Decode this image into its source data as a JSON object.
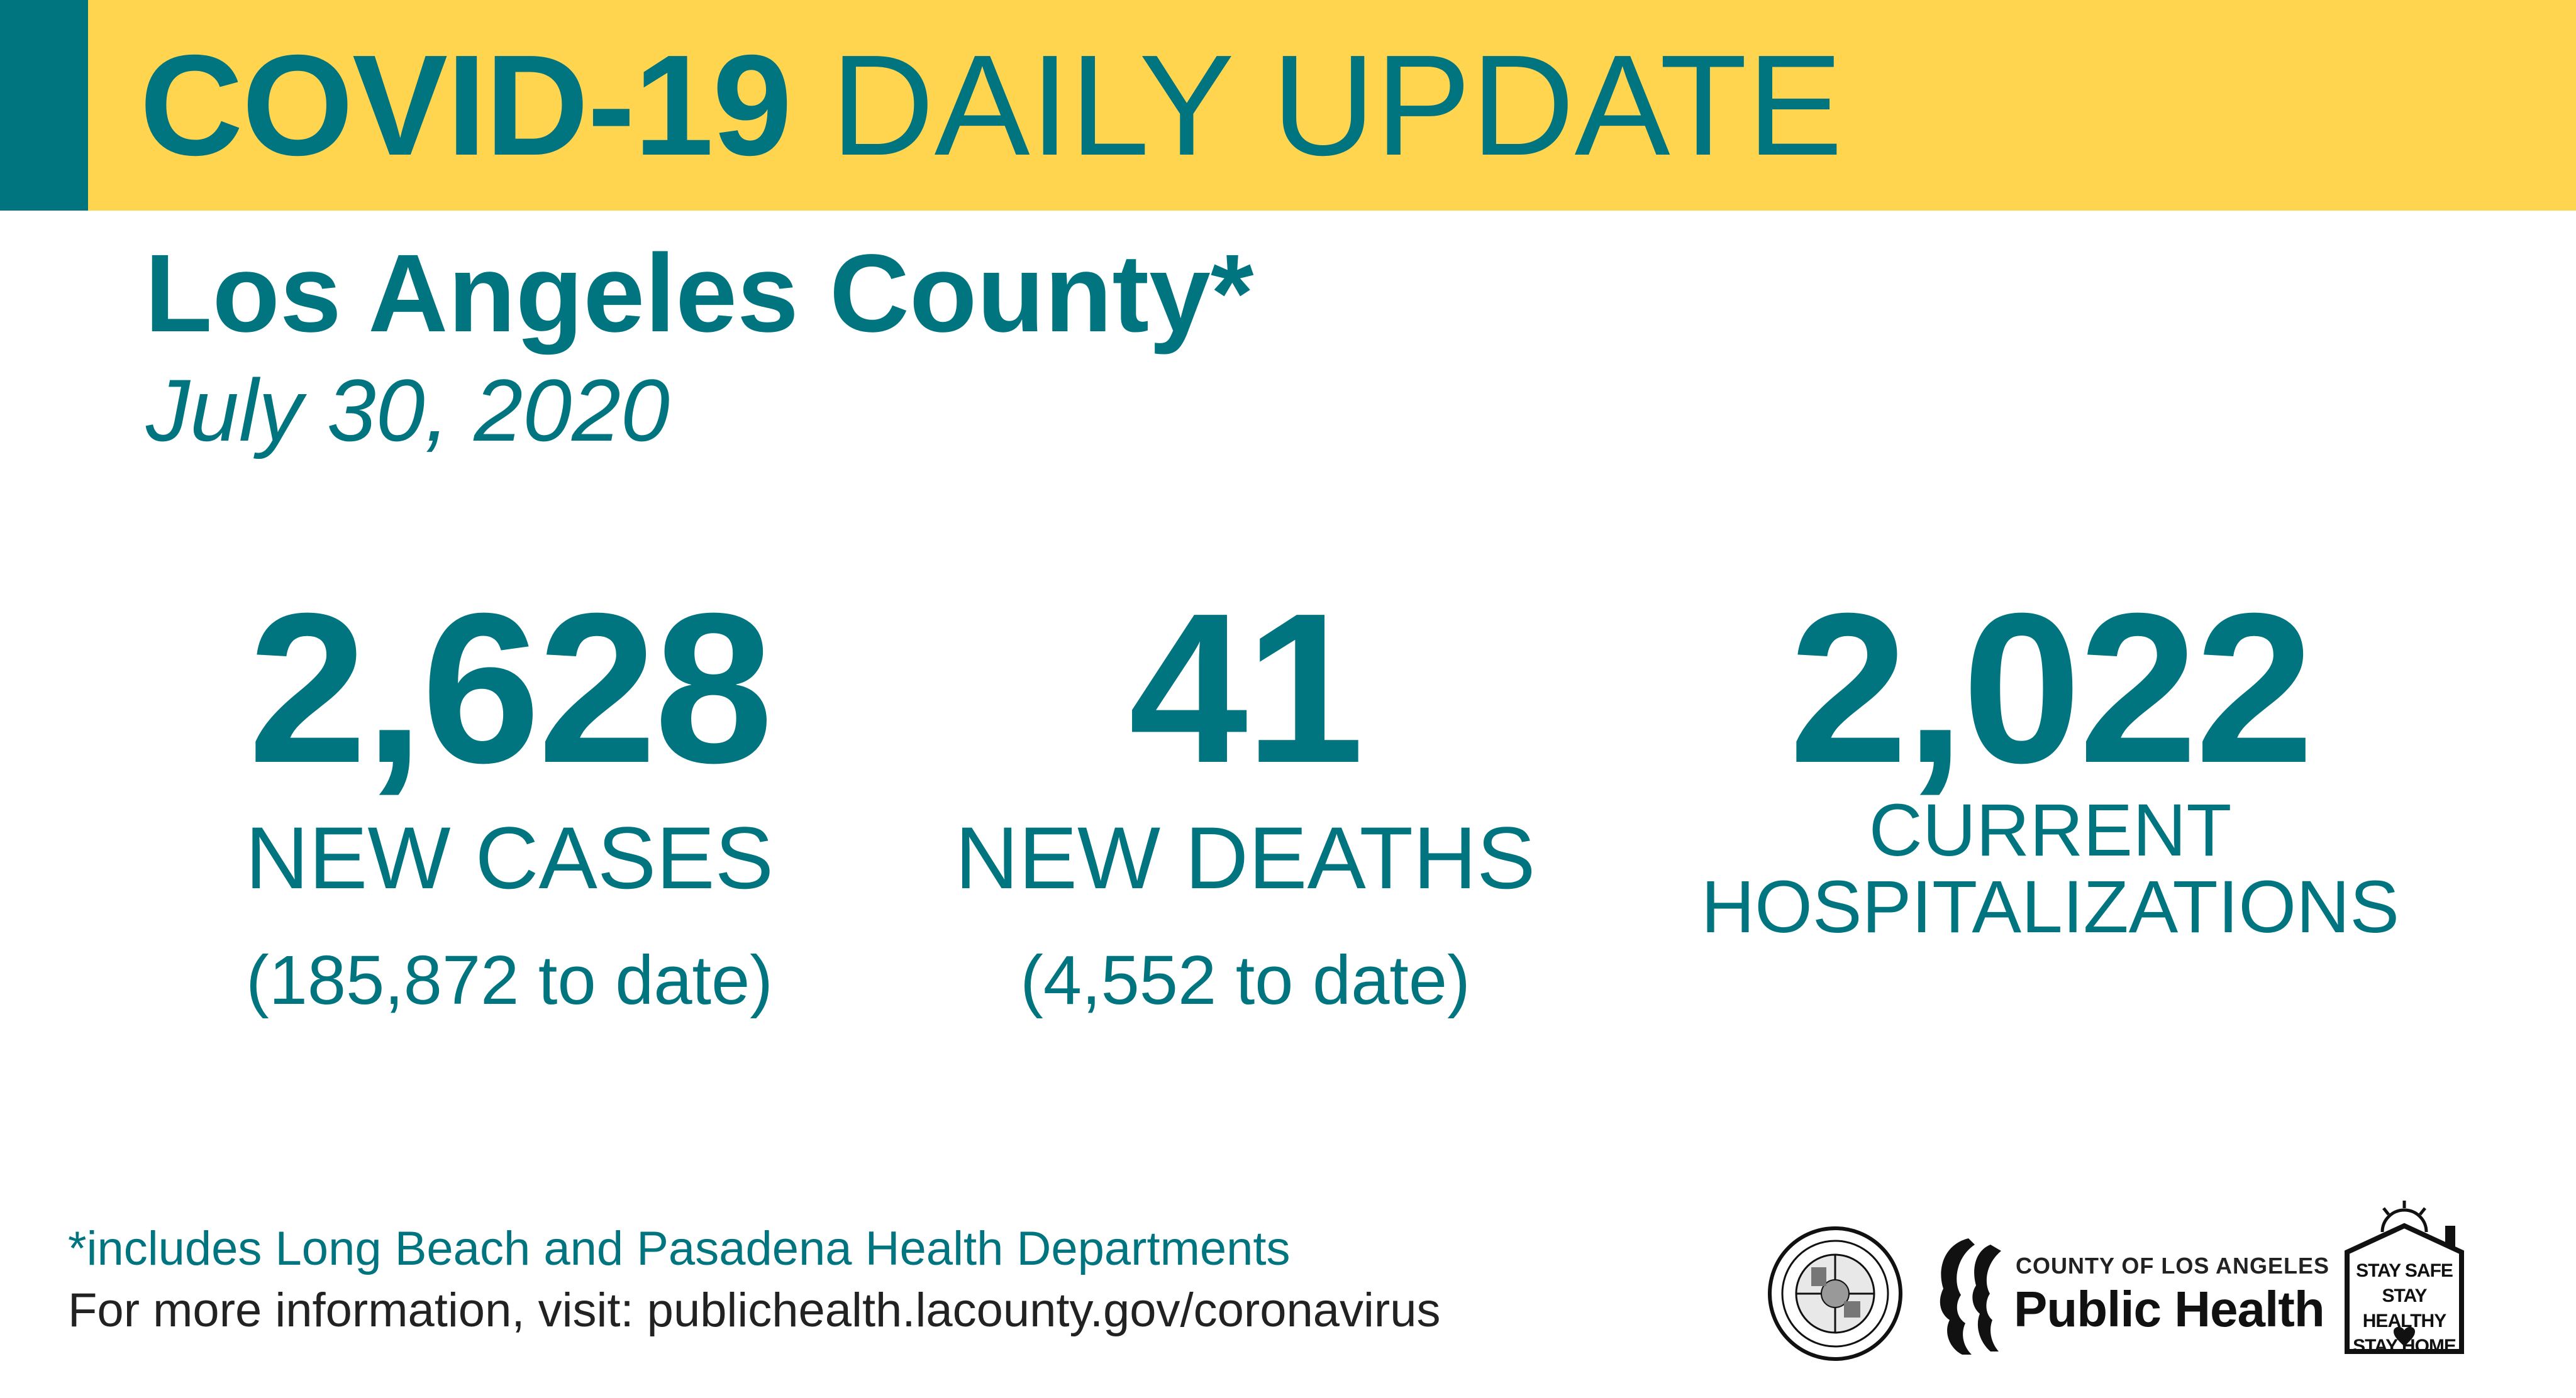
{
  "banner": {
    "title_strong": "COVID-19",
    "title_light": "DAILY UPDATE"
  },
  "county": "Los Angeles County*",
  "date": "July 30, 2020",
  "stats": {
    "cases": {
      "value": "2,628",
      "label": "NEW CASES",
      "to_date": "(185,872 to date)"
    },
    "deaths": {
      "value": "41",
      "label": "NEW DEATHS",
      "to_date": "(4,552 to date)"
    },
    "hospitalizations": {
      "value": "2,022",
      "label_line1": "CURRENT",
      "label_line2": "HOSPITALIZATIONS"
    }
  },
  "footer": {
    "footnote": "*includes Long Beach and Pasadena Health Departments",
    "more_info": "For more information, visit: publichealth.lacounty.gov/coronavirus"
  },
  "logos": {
    "seal_icon": "county-seal-icon",
    "public_health_small": "COUNTY OF LOS ANGELES",
    "public_health_big": "Public Health",
    "stay_lines": [
      "STAY SAFE",
      "STAY HEALTHY",
      "STAY HOME"
    ]
  },
  "colors": {
    "teal": "#00747f",
    "yellow": "#ffd54f"
  }
}
